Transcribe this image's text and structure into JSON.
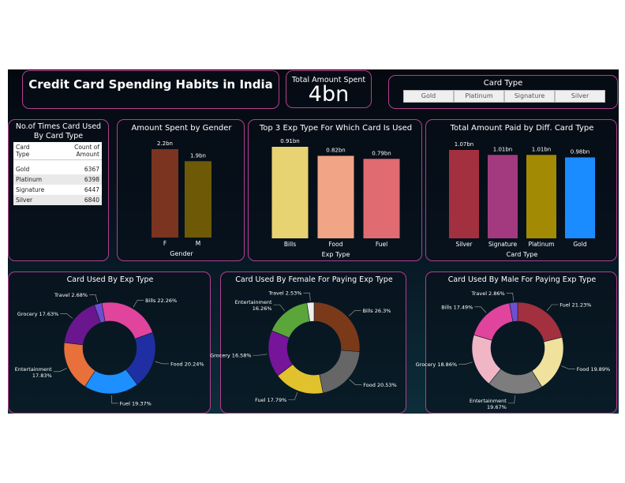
{
  "header": {
    "title": "Credit Card Spending Habits in India"
  },
  "kpi": {
    "label": "Total Amount Spent",
    "value": "4bn"
  },
  "slicer": {
    "title": "Card Type",
    "options": [
      "Gold",
      "Platinum",
      "Signature",
      "Silver"
    ]
  },
  "count_table": {
    "title_line1": "No.of Times Card Used",
    "title_line2": "By Card Type",
    "col1": "Card Type",
    "col2": "Count of Amount",
    "rows": [
      {
        "type": "Gold",
        "count": "6367"
      },
      {
        "type": "Platinum",
        "count": "6398"
      },
      {
        "type": "Signature",
        "count": "6447"
      },
      {
        "type": "Silver",
        "count": "6840"
      }
    ]
  },
  "chart_data": [
    {
      "id": "gender",
      "type": "bar",
      "title": "Amount Spent by Gender",
      "xlabel": "Gender",
      "categories": [
        "F",
        "M"
      ],
      "values": [
        2.2,
        1.9
      ],
      "labels": [
        "2.2bn",
        "1.9bn"
      ],
      "colors": [
        "#7b3420",
        "#6e5a06"
      ],
      "ylim": [
        0,
        2.2
      ]
    },
    {
      "id": "exptop3",
      "type": "bar",
      "title": "Top 3 Exp Type For Which Card Is Used",
      "xlabel": "Exp Type",
      "categories": [
        "Bills",
        "Food",
        "Fuel"
      ],
      "values": [
        0.91,
        0.82,
        0.79
      ],
      "labels": [
        "0.91bn",
        "0.82bn",
        "0.79bn"
      ],
      "colors": [
        "#e8d372",
        "#f1a586",
        "#e06b70"
      ],
      "ylim": [
        0,
        0.91
      ]
    },
    {
      "id": "cardtype",
      "type": "bar",
      "title": "Total Amount Paid by Diff. Card Type",
      "xlabel": "Card Type",
      "categories": [
        "Silver",
        "Signature",
        "Platinum",
        "Gold"
      ],
      "values": [
        1.07,
        1.01,
        1.01,
        0.98
      ],
      "labels": [
        "1.07bn",
        "1.01bn",
        "1.01bn",
        "0.98bn"
      ],
      "colors": [
        "#a3303f",
        "#a33a80",
        "#a38a05",
        "#1a8cff"
      ],
      "ylim": [
        0,
        1.07
      ]
    },
    {
      "id": "donut_all",
      "type": "pie",
      "title": "Card Used By Exp Type",
      "slices": [
        {
          "label": "Bills 22.26%",
          "value": 22.26,
          "color": "#e0449d"
        },
        {
          "label": "Food 20.24%",
          "value": 20.24,
          "color": "#1f2fa3"
        },
        {
          "label": "Fuel 19.37%",
          "value": 19.37,
          "color": "#1e8fff"
        },
        {
          "label": "Entertainment 17.83%",
          "value": 17.83,
          "color": "#e8703a"
        },
        {
          "label": "Grocery 17.63%",
          "value": 17.63,
          "color": "#6a178f"
        },
        {
          "label": "Travel 2.68%",
          "value": 2.68,
          "color": "#6e4fd0"
        }
      ]
    },
    {
      "id": "donut_female",
      "type": "pie",
      "title": "Card Used By Female For Paying Exp Type",
      "slices": [
        {
          "label": "Bills 26.3%",
          "value": 26.3,
          "color": "#7a3a1a"
        },
        {
          "label": "Food 20.53%",
          "value": 20.53,
          "color": "#666666"
        },
        {
          "label": "Fuel 17.79%",
          "value": 17.79,
          "color": "#e2c22c"
        },
        {
          "label": "Grocery 16.58%",
          "value": 16.58,
          "color": "#76149a"
        },
        {
          "label": "Entertainment 16.26%",
          "value": 16.26,
          "color": "#5aa63a"
        },
        {
          "label": "Travel 2.53%",
          "value": 2.53,
          "color": "#eeeeee"
        }
      ]
    },
    {
      "id": "donut_male",
      "type": "pie",
      "title": "Card Used By Male For Paying Exp Type",
      "slices": [
        {
          "label": "Fuel 21.23%",
          "value": 21.23,
          "color": "#a3303f"
        },
        {
          "label": "Food 19.89%",
          "value": 19.89,
          "color": "#f0e29c"
        },
        {
          "label": "Entertainment 19.67%",
          "value": 19.67,
          "color": "#7d7d7d"
        },
        {
          "label": "Grocery 18.86%",
          "value": 18.86,
          "color": "#f0b6c6"
        },
        {
          "label": "Bills 17.49%",
          "value": 17.49,
          "color": "#e0449d"
        },
        {
          "label": "Travel 2.86%",
          "value": 2.86,
          "color": "#6e4fd0"
        }
      ]
    }
  ]
}
